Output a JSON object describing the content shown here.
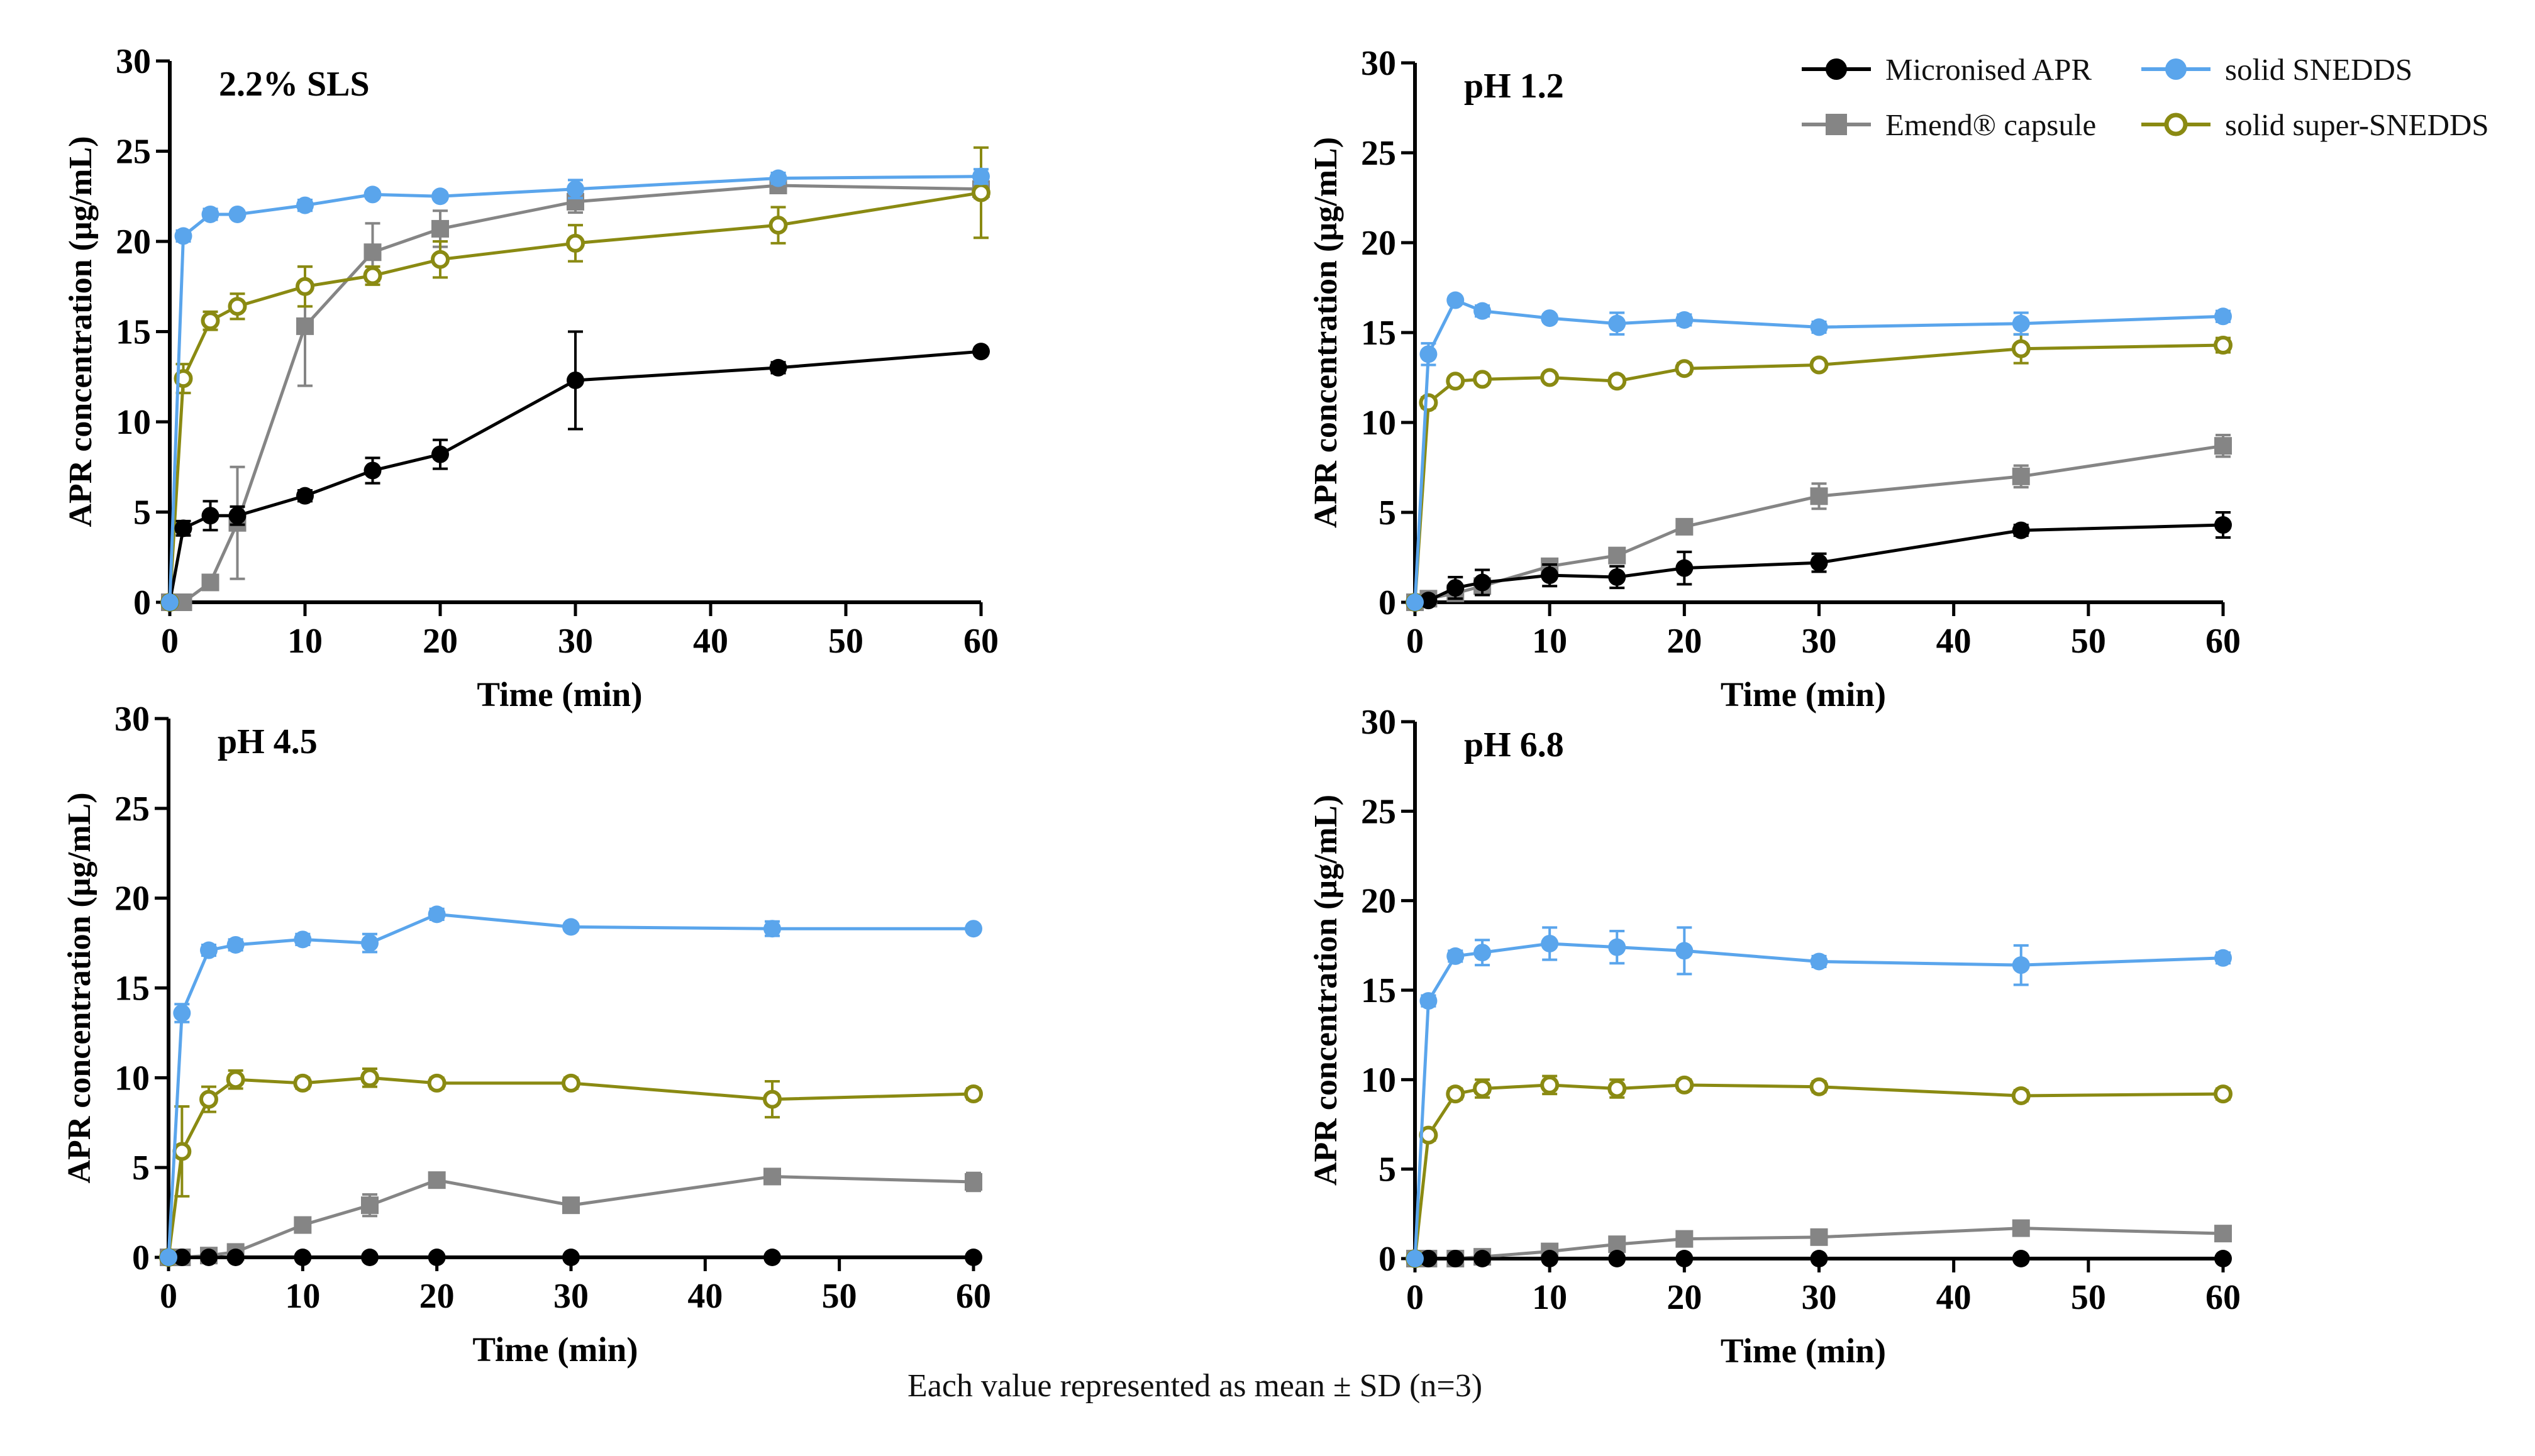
{
  "chart_data": [
    {
      "type": "line",
      "title": "2.2% SLS",
      "xlabel": "Time (min)",
      "ylabel": "APR concentration (µg/mL)",
      "xlim": [
        0,
        60
      ],
      "ylim": [
        0,
        30
      ],
      "xticks": [
        0,
        10,
        20,
        30,
        40,
        50,
        60
      ],
      "yticks": [
        0,
        5,
        10,
        15,
        20,
        25,
        30
      ],
      "x": [
        0,
        1,
        3,
        5,
        10,
        15,
        20,
        30,
        45,
        60
      ],
      "series": [
        {
          "name": "Emend® capsule",
          "color": "#858585",
          "marker": "square",
          "values": [
            0,
            0,
            1.1,
            4.4,
            15.3,
            19.4,
            20.7,
            22.2,
            23.1,
            22.9
          ],
          "sd": [
            0,
            0,
            0.3,
            3.1,
            3.3,
            1.6,
            1.0,
            0.6,
            0.3,
            0.5
          ]
        },
        {
          "name": "solid super-SNEDDS",
          "color": "#8a8a12",
          "marker": "open-circle",
          "values": [
            0,
            12.4,
            15.6,
            16.4,
            17.5,
            18.1,
            19.0,
            19.9,
            20.9,
            22.7
          ],
          "sd": [
            0,
            0.8,
            0.5,
            0.7,
            1.1,
            0.5,
            1.0,
            1.0,
            1.0,
            2.5
          ]
        },
        {
          "name": "Micronised APR",
          "color": "#000000",
          "marker": "circle",
          "values": [
            0,
            4.1,
            4.8,
            4.8,
            5.9,
            7.3,
            8.2,
            12.3,
            13.0,
            13.9
          ],
          "sd": [
            0,
            0.4,
            0.8,
            0.5,
            0.3,
            0.7,
            0.8,
            2.7,
            0.3,
            0.2
          ]
        },
        {
          "name": "solid SNEDDS",
          "color": "#5aa5ec",
          "marker": "circle",
          "values": [
            0,
            20.3,
            21.5,
            21.5,
            22.0,
            22.6,
            22.5,
            22.9,
            23.5,
            23.6
          ],
          "sd": [
            0,
            0.3,
            0.3,
            0.2,
            0.3,
            0.2,
            0.2,
            0.5,
            0.3,
            0.4
          ]
        }
      ]
    },
    {
      "type": "line",
      "title": "pH 1.2",
      "xlabel": "Time (min)",
      "ylabel": "APR concentration (µg/mL)",
      "xlim": [
        0,
        60
      ],
      "ylim": [
        0,
        30
      ],
      "xticks": [
        0,
        10,
        20,
        30,
        40,
        50,
        60
      ],
      "yticks": [
        0,
        5,
        10,
        15,
        20,
        25,
        30
      ],
      "x": [
        0,
        1,
        3,
        5,
        10,
        15,
        20,
        30,
        45,
        60
      ],
      "series": [
        {
          "name": "Emend® capsule",
          "color": "#858585",
          "marker": "square",
          "values": [
            0,
            0.2,
            0.5,
            0.9,
            2.0,
            2.6,
            4.2,
            5.9,
            7.0,
            8.7
          ],
          "sd": [
            0,
            0.2,
            0.3,
            0.4,
            0.3,
            0.4,
            0.3,
            0.7,
            0.6,
            0.6
          ]
        },
        {
          "name": "solid super-SNEDDS",
          "color": "#8a8a12",
          "marker": "open-circle",
          "values": [
            0,
            11.1,
            12.3,
            12.4,
            12.5,
            12.3,
            13.0,
            13.2,
            14.1,
            14.3
          ],
          "sd": [
            0,
            0.3,
            0.2,
            0.2,
            0.2,
            0.2,
            0.3,
            0.2,
            0.8,
            0.4
          ]
        },
        {
          "name": "Micronised APR",
          "color": "#000000",
          "marker": "circle",
          "values": [
            0,
            0.1,
            0.8,
            1.1,
            1.5,
            1.4,
            1.9,
            2.2,
            4.0,
            4.3
          ],
          "sd": [
            0,
            0.1,
            0.6,
            0.7,
            0.6,
            0.6,
            0.9,
            0.5,
            0.3,
            0.7
          ]
        },
        {
          "name": "solid SNEDDS",
          "color": "#5aa5ec",
          "marker": "circle",
          "values": [
            0,
            13.8,
            16.8,
            16.2,
            15.8,
            15.5,
            15.7,
            15.3,
            15.5,
            15.9
          ],
          "sd": [
            0,
            0.6,
            0.2,
            0.3,
            0.2,
            0.6,
            0.3,
            0.3,
            0.6,
            0.3
          ]
        }
      ]
    },
    {
      "type": "line",
      "title": "pH 4.5",
      "xlabel": "Time (min)",
      "ylabel": "APR concentration (µg/mL)",
      "xlim": [
        0,
        60
      ],
      "ylim": [
        0,
        30
      ],
      "xticks": [
        0,
        10,
        20,
        30,
        40,
        50,
        60
      ],
      "yticks": [
        0,
        5,
        10,
        15,
        20,
        25,
        30
      ],
      "x": [
        0,
        1,
        3,
        5,
        10,
        15,
        20,
        30,
        45,
        60
      ],
      "series": [
        {
          "name": "Emend® capsule",
          "color": "#858585",
          "marker": "square",
          "values": [
            0,
            0,
            0.1,
            0.3,
            1.8,
            2.9,
            4.3,
            2.9,
            4.5,
            4.2
          ],
          "sd": [
            0,
            0,
            0.1,
            0.2,
            0.2,
            0.6,
            0.4,
            0.3,
            0.3,
            0.5
          ]
        },
        {
          "name": "solid super-SNEDDS",
          "color": "#8a8a12",
          "marker": "open-circle",
          "values": [
            0,
            5.9,
            8.8,
            9.9,
            9.7,
            10.0,
            9.7,
            9.7,
            8.8,
            9.1
          ],
          "sd": [
            0,
            2.5,
            0.7,
            0.5,
            0.3,
            0.5,
            0.3,
            0.3,
            1.0,
            0.3
          ]
        },
        {
          "name": "Micronised APR",
          "color": "#000000",
          "marker": "circle",
          "values": [
            0,
            0,
            0,
            0,
            0,
            0,
            0,
            0,
            0,
            0
          ],
          "sd": [
            0,
            0,
            0,
            0,
            0,
            0,
            0,
            0,
            0,
            0
          ]
        },
        {
          "name": "solid SNEDDS",
          "color": "#5aa5ec",
          "marker": "circle",
          "values": [
            0,
            13.6,
            17.1,
            17.4,
            17.7,
            17.5,
            19.1,
            18.4,
            18.3,
            18.3
          ],
          "sd": [
            0,
            0.5,
            0.3,
            0.3,
            0.3,
            0.5,
            0.3,
            0.2,
            0.4,
            0.2
          ]
        }
      ]
    },
    {
      "type": "line",
      "title": "pH 6.8",
      "xlabel": "Time (min)",
      "ylabel": "APR concentration (µg/mL)",
      "xlim": [
        0,
        60
      ],
      "ylim": [
        0,
        30
      ],
      "xticks": [
        0,
        10,
        20,
        30,
        40,
        50,
        60
      ],
      "yticks": [
        0,
        5,
        10,
        15,
        20,
        25,
        30
      ],
      "x": [
        0,
        1,
        3,
        5,
        10,
        15,
        20,
        30,
        45,
        60
      ],
      "series": [
        {
          "name": "Emend® capsule",
          "color": "#858585",
          "marker": "square",
          "values": [
            0,
            0,
            0,
            0.1,
            0.4,
            0.8,
            1.1,
            1.2,
            1.7,
            1.4
          ],
          "sd": [
            0,
            0,
            0,
            0.1,
            0.2,
            0.3,
            0.3,
            0.2,
            0.3,
            0.2
          ]
        },
        {
          "name": "solid super-SNEDDS",
          "color": "#8a8a12",
          "marker": "open-circle",
          "values": [
            0,
            6.9,
            9.2,
            9.5,
            9.7,
            9.5,
            9.7,
            9.6,
            9.1,
            9.2
          ],
          "sd": [
            0,
            0.3,
            0.3,
            0.5,
            0.5,
            0.5,
            0.3,
            0.3,
            0.3,
            0.3
          ]
        },
        {
          "name": "Micronised APR",
          "color": "#000000",
          "marker": "circle",
          "values": [
            0,
            0,
            0,
            0,
            0,
            0,
            0,
            0,
            0,
            0
          ],
          "sd": [
            0,
            0,
            0,
            0,
            0,
            0,
            0,
            0,
            0,
            0
          ]
        },
        {
          "name": "solid SNEDDS",
          "color": "#5aa5ec",
          "marker": "circle",
          "values": [
            0,
            14.4,
            16.9,
            17.1,
            17.6,
            17.4,
            17.2,
            16.6,
            16.4,
            16.8
          ],
          "sd": [
            0,
            0.3,
            0.3,
            0.7,
            0.9,
            0.9,
            1.3,
            0.3,
            1.1,
            0.3
          ]
        }
      ]
    }
  ],
  "legend": {
    "items": [
      {
        "label": "Micronised APR",
        "color": "#000000",
        "marker": "circle"
      },
      {
        "label": "solid SNEDDS",
        "color": "#5aa5ec",
        "marker": "circle"
      },
      {
        "label": "Emend® capsule",
        "color": "#858585",
        "marker": "square"
      },
      {
        "label": "solid super-SNEDDS",
        "color": "#8a8a12",
        "marker": "open-circle"
      }
    ]
  },
  "footnote": "Each value represented as mean ± SD (n=3)"
}
